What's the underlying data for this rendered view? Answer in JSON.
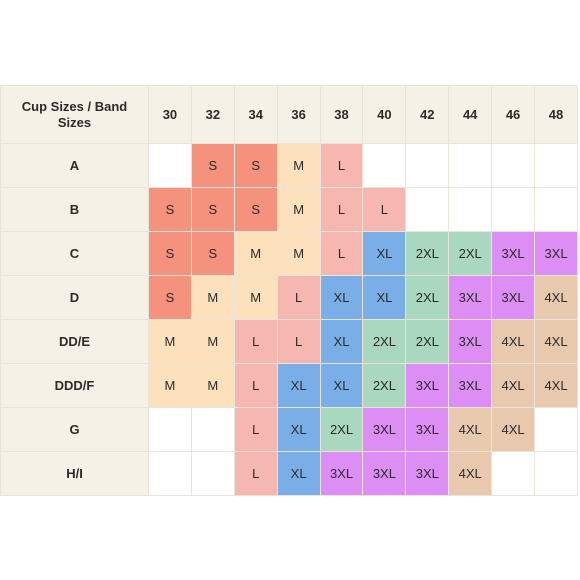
{
  "corner_label": "Cup Sizes / Band Sizes",
  "bands": [
    "30",
    "32",
    "34",
    "36",
    "38",
    "40",
    "42",
    "44",
    "46",
    "48"
  ],
  "size_colors": {
    "S": "#f4927d",
    "M": "#fde1bc",
    "L": "#f6b7b0",
    "XL": "#7aaee6",
    "2XL": "#a9d8be",
    "3XL": "#dc8ef5",
    "4XL": "#e8c9ae",
    "": "#ffffff"
  },
  "rows": [
    {
      "cup": "A",
      "sizes": [
        "",
        "S",
        "S",
        "M",
        "L",
        "",
        "",
        "",
        "",
        ""
      ]
    },
    {
      "cup": "B",
      "sizes": [
        "S",
        "S",
        "S",
        "M",
        "L",
        "L",
        "",
        "",
        "",
        ""
      ]
    },
    {
      "cup": "C",
      "sizes": [
        "S",
        "S",
        "M",
        "M",
        "L",
        "XL",
        "2XL",
        "2XL",
        "3XL",
        "3XL"
      ]
    },
    {
      "cup": "D",
      "sizes": [
        "S",
        "M",
        "M",
        "L",
        "XL",
        "XL",
        "2XL",
        "3XL",
        "3XL",
        "4XL"
      ]
    },
    {
      "cup": "DD/E",
      "sizes": [
        "M",
        "M",
        "L",
        "L",
        "XL",
        "2XL",
        "2XL",
        "3XL",
        "4XL",
        "4XL"
      ]
    },
    {
      "cup": "DDD/F",
      "sizes": [
        "M",
        "M",
        "L",
        "XL",
        "XL",
        "2XL",
        "3XL",
        "3XL",
        "4XL",
        "4XL"
      ]
    },
    {
      "cup": "G",
      "sizes": [
        "",
        "",
        "L",
        "XL",
        "2XL",
        "3XL",
        "3XL",
        "4XL",
        "4XL",
        ""
      ]
    },
    {
      "cup": "H/I",
      "sizes": [
        "",
        "",
        "L",
        "XL",
        "3XL",
        "3XL",
        "3XL",
        "4XL",
        "",
        ""
      ]
    }
  ]
}
